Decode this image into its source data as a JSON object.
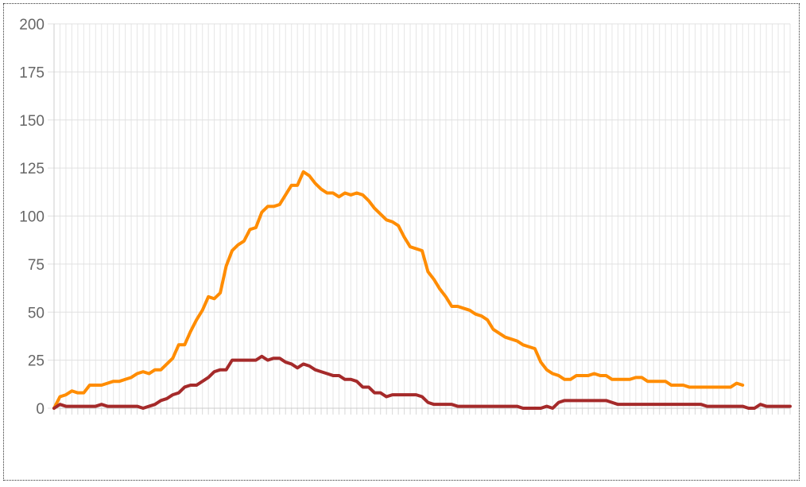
{
  "chart_data": {
    "type": "line",
    "ylim": [
      0,
      200
    ],
    "yticks": [
      0,
      25,
      50,
      75,
      100,
      125,
      150,
      175,
      200
    ],
    "grid": true,
    "legend": "none",
    "x_tick_labels_note": "",
    "series": [
      {
        "color": "#ff8c00",
        "values": [
          0,
          6,
          7,
          9,
          8,
          8,
          12,
          12,
          12,
          13,
          14,
          14,
          15,
          16,
          18,
          19,
          18,
          20,
          20,
          23,
          26,
          33,
          33,
          40,
          46,
          51,
          58,
          57,
          60,
          74,
          82,
          85,
          87,
          93,
          94,
          102,
          105,
          105,
          106,
          111,
          116,
          116,
          123,
          121,
          117,
          114,
          112,
          112,
          110,
          112,
          111,
          112,
          111,
          108,
          104,
          101,
          98,
          97,
          95,
          89,
          84,
          83,
          82,
          71,
          67,
          62,
          58,
          53,
          53,
          52,
          51,
          49,
          48,
          46,
          41,
          39,
          37,
          36,
          35,
          33,
          32,
          31,
          24,
          20,
          18,
          17,
          15,
          15,
          17,
          17,
          17,
          18,
          17,
          17,
          15,
          15,
          15,
          15,
          16,
          16,
          14,
          14,
          14,
          14,
          12,
          12,
          12,
          11,
          11,
          11,
          11,
          11,
          11,
          11,
          11,
          13,
          12
        ]
      },
      {
        "color": "#a52a2a",
        "values": [
          0,
          2,
          1,
          1,
          1,
          1,
          1,
          1,
          2,
          1,
          1,
          1,
          1,
          1,
          1,
          0,
          1,
          2,
          4,
          5,
          7,
          8,
          11,
          12,
          12,
          14,
          16,
          19,
          20,
          20,
          25,
          25,
          25,
          25,
          25,
          27,
          25,
          26,
          26,
          24,
          23,
          21,
          23,
          22,
          20,
          19,
          18,
          17,
          17,
          15,
          15,
          14,
          11,
          11,
          8,
          8,
          6,
          7,
          7,
          7,
          7,
          7,
          6,
          3,
          2,
          2,
          2,
          2,
          1,
          1,
          1,
          1,
          1,
          1,
          1,
          1,
          1,
          1,
          1,
          0,
          0,
          0,
          0,
          1,
          0,
          3,
          4,
          4,
          4,
          4,
          4,
          4,
          4,
          4,
          3,
          2,
          2,
          2,
          2,
          2,
          2,
          2,
          2,
          2,
          2,
          2,
          2,
          2,
          2,
          2,
          1,
          1,
          1,
          1,
          1,
          1,
          1,
          0,
          0,
          2,
          1,
          1,
          1,
          1,
          1
        ]
      }
    ]
  }
}
